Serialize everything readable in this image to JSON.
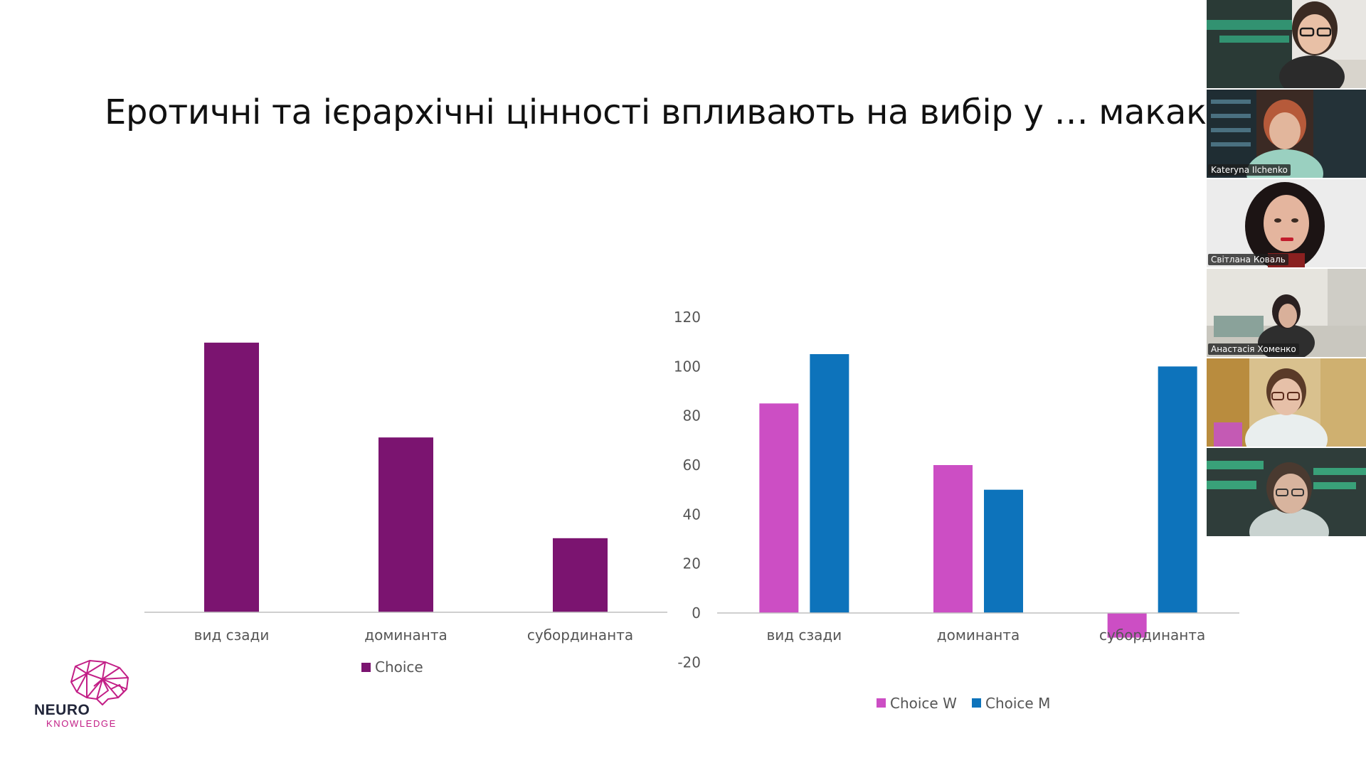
{
  "slide": {
    "title": "Еротичні та ієрархічні цінності впливають на вибір у … макак"
  },
  "colors": {
    "choice": "#7b1470",
    "choice_w": "#cc4ec4",
    "choice_m": "#0d73bb",
    "axis": "#bfbfbf",
    "label": "#555555",
    "brand": "#c21e86"
  },
  "chart_data": [
    {
      "type": "bar",
      "categories": [
        "вид сзади",
        "доминанта",
        "субординанта"
      ],
      "series": [
        {
          "name": "Choice",
          "values": [
            91,
            59,
            25
          ]
        }
      ],
      "y_axis_visible": false,
      "ylim": [
        0,
        120
      ],
      "legend_position": "bottom",
      "grid": false
    },
    {
      "type": "bar",
      "categories": [
        "вид сзади",
        "доминанта",
        "субординанта"
      ],
      "series": [
        {
          "name": "Choice W",
          "values": [
            85,
            60,
            -10
          ]
        },
        {
          "name": "Choice M",
          "values": [
            105,
            50,
            100
          ]
        }
      ],
      "y_ticks": [
        "120",
        "100",
        "80",
        "60",
        "40",
        "20",
        "0",
        "-20"
      ],
      "ylim": [
        -20,
        120
      ],
      "legend_position": "bottom",
      "grid": false
    }
  ],
  "participants": [
    {
      "name": "",
      "icon": "video-feed"
    },
    {
      "name": "Kateryna Ilchenko",
      "icon": "video-feed"
    },
    {
      "name": "Світлана Коваль",
      "icon": "video-feed"
    },
    {
      "name": "Анастасія Хоменко",
      "icon": "video-feed"
    },
    {
      "name": "",
      "icon": "video-feed"
    },
    {
      "name": "",
      "icon": "video-feed"
    }
  ],
  "logo": {
    "line1": "NEURO",
    "line2": "KNOWLEDGE",
    "icon": "brain-network-icon"
  }
}
